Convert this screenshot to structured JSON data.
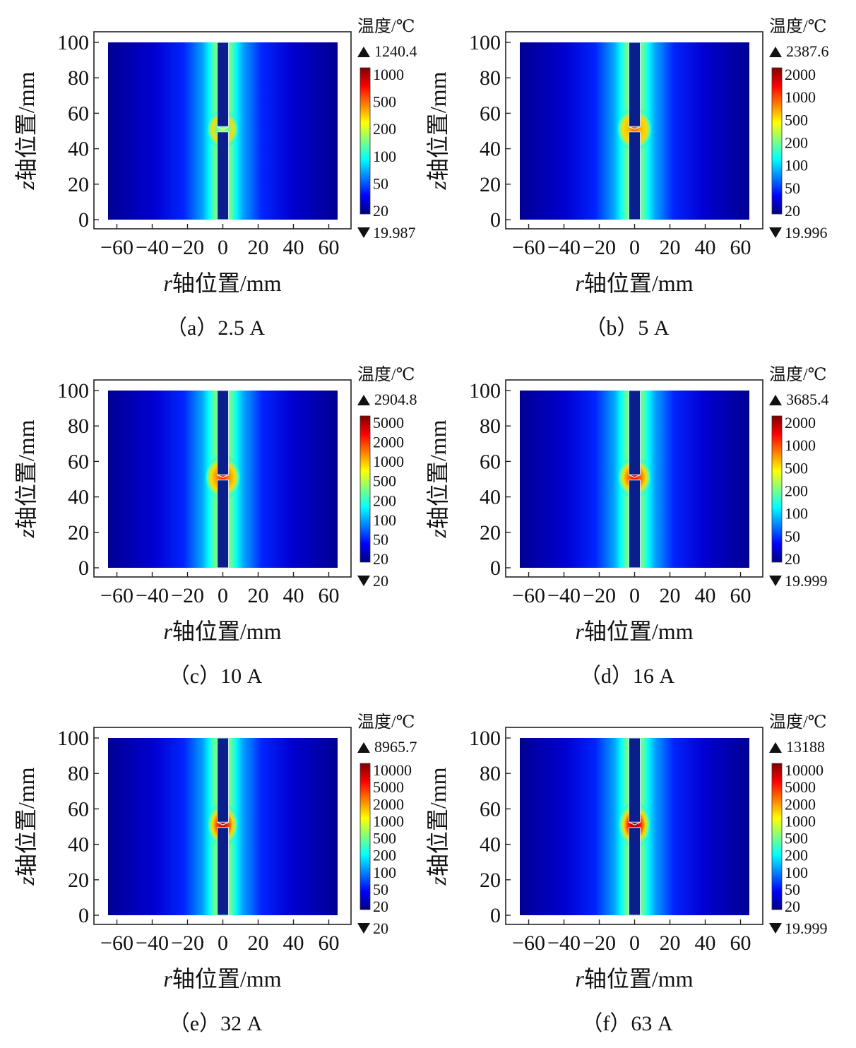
{
  "figure": {
    "panels": [
      {
        "caption": "（a）2.5 A",
        "cb_title": "温度/℃",
        "max_label": "1240.4",
        "min_label": "19.987",
        "cb_ticks": [
          "1000",
          "500",
          "200",
          "100",
          "50",
          "20"
        ],
        "intensity": 0.55,
        "arc_width": 0.7
      },
      {
        "caption": "（b）5 A",
        "cb_title": "温度/℃",
        "max_label": "2387.6",
        "min_label": "19.996",
        "cb_ticks": [
          "2000",
          "1000",
          "500",
          "200",
          "100",
          "50",
          "20"
        ],
        "intensity": 0.8,
        "arc_width": 0.95
      },
      {
        "caption": "（c）10 A",
        "cb_title": "温度/℃",
        "max_label": "2904.8",
        "min_label": "20",
        "cb_ticks": [
          "5000",
          "2000",
          "1000",
          "500",
          "200",
          "100",
          "50",
          "20"
        ],
        "intensity": 0.85,
        "arc_width": 1.0
      },
      {
        "caption": "（d）16 A",
        "cb_title": "温度/℃",
        "max_label": "3685.4",
        "min_label": "19.999",
        "cb_ticks": [
          "2000",
          "1000",
          "500",
          "200",
          "100",
          "50",
          "20"
        ],
        "intensity": 0.9,
        "arc_width": 0.85
      },
      {
        "caption": "（e）32 A",
        "cb_title": "温度/℃",
        "max_label": "8965.7",
        "min_label": "20",
        "cb_ticks": [
          "10000",
          "5000",
          "2000",
          "1000",
          "500",
          "200",
          "100",
          "50",
          "20"
        ],
        "intensity": 0.95,
        "arc_width": 0.65
      },
      {
        "caption": "（f）63 A",
        "cb_title": "温度/℃",
        "max_label": "13188",
        "min_label": "19.999",
        "cb_ticks": [
          "10000",
          "5000",
          "2000",
          "1000",
          "500",
          "200",
          "100",
          "50",
          "20"
        ],
        "intensity": 1.0,
        "arc_width": 0.75
      }
    ]
  },
  "chart_data": {
    "type": "heatmap",
    "xlabel_var": "r",
    "xlabel_rest": "轴位置/mm",
    "ylabel_var": "z",
    "ylabel_rest": "轴位置/mm",
    "xlim": [
      -65,
      65
    ],
    "ylim": [
      0,
      100
    ],
    "x_ticks": [
      -60,
      -40,
      -20,
      0,
      20,
      40,
      60
    ],
    "y_ticks": [
      0,
      20,
      40,
      60,
      80,
      100
    ],
    "colormap": [
      "#00007f",
      "#0000ff",
      "#007fff",
      "#00ffff",
      "#7fff7f",
      "#ffff00",
      "#ff7f00",
      "#ff0000",
      "#7f0000"
    ]
  }
}
